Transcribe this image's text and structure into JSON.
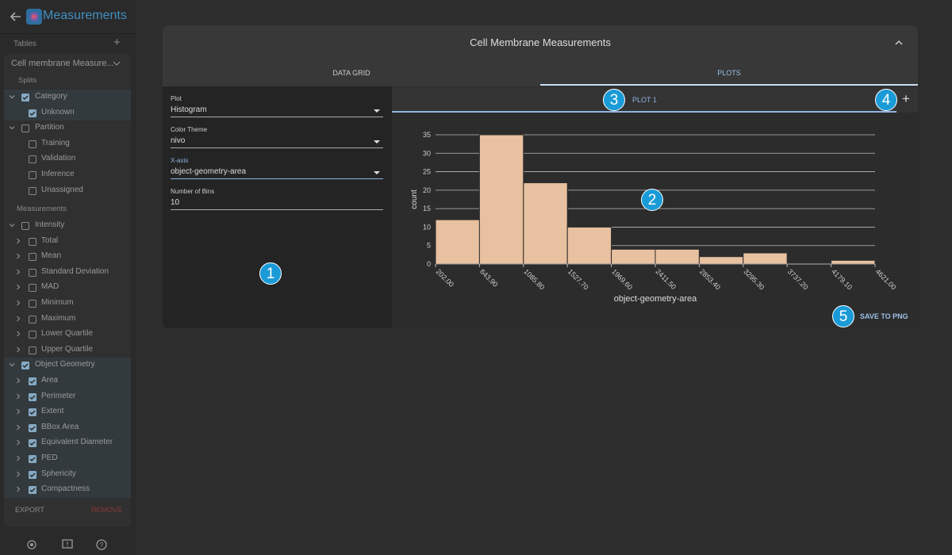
{
  "sidebar": {
    "app_title": "Measurements",
    "tables_label": "Tables",
    "table_name": "Cell membrane Measure...",
    "splits_label": "Splits",
    "splits": [
      {
        "label": "Category",
        "checked": true,
        "children": [
          {
            "label": "Unknown",
            "checked": true
          }
        ]
      },
      {
        "label": "Partition",
        "checked": false,
        "children": [
          {
            "label": "Training",
            "checked": false
          },
          {
            "label": "Validation",
            "checked": false
          },
          {
            "label": "Inference",
            "checked": false
          },
          {
            "label": "Unassigned",
            "checked": false
          }
        ]
      }
    ],
    "measurements_label": "Measurements",
    "measurements": [
      {
        "label": "Intensity",
        "checked": false,
        "children": [
          {
            "label": "Total",
            "checked": false
          },
          {
            "label": "Mean",
            "checked": false
          },
          {
            "label": "Standard Deviation",
            "checked": false
          },
          {
            "label": "MAD",
            "checked": false
          },
          {
            "label": "Minimum",
            "checked": false
          },
          {
            "label": "Maximum",
            "checked": false
          },
          {
            "label": "Lower Quartile",
            "checked": false
          },
          {
            "label": "Upper Quartile",
            "checked": false
          }
        ]
      },
      {
        "label": "Object Geometry",
        "checked": true,
        "children": [
          {
            "label": "Area",
            "checked": true
          },
          {
            "label": "Perimeter",
            "checked": true
          },
          {
            "label": "Extent",
            "checked": true
          },
          {
            "label": "BBox Area",
            "checked": true
          },
          {
            "label": "Equivalent Diameter",
            "checked": true
          },
          {
            "label": "PED",
            "checked": true
          },
          {
            "label": "Sphericity",
            "checked": true
          },
          {
            "label": "Compactness",
            "checked": true
          }
        ]
      }
    ],
    "export": "EXPORT",
    "remove": "REMOVE"
  },
  "panel": {
    "title": "Cell Membrane Measurements",
    "tabs": [
      "DATA GRID",
      "PLOTS"
    ],
    "active_tab": 1,
    "fields": [
      {
        "label": "Plot",
        "value": "Histogram"
      },
      {
        "label": "Color Theme",
        "value": "nivo"
      },
      {
        "label": "X-axis",
        "value": "object-geometry-area"
      },
      {
        "label": "Number of Bins",
        "value": "10"
      }
    ],
    "focused_field": 2,
    "plot_tab": "PLOT 1",
    "save": "SAVE TO PNG",
    "badges": [
      1,
      2,
      3,
      4,
      5
    ]
  },
  "chart_data": {
    "type": "histogram",
    "bins": [
      202,
      643.9,
      1085.8,
      1527.7,
      1969.6,
      2411.5,
      2853.4,
      3295.3,
      3737.2,
      4179.1,
      4621
    ],
    "values": [
      12,
      35,
      22,
      10,
      4,
      4,
      2,
      3,
      0,
      1
    ],
    "color": "#e8c1a0",
    "xlabel": "object-geometry-area",
    "ylabel": "count",
    "xlim": [
      202,
      4621
    ],
    "ylim": [
      0,
      35
    ],
    "xticks": [
      {
        "value": 202,
        "label": "202.00"
      },
      {
        "value": 643.9,
        "label": "643.90"
      },
      {
        "value": 1085.8,
        "label": "1085.80"
      },
      {
        "value": 1527.7,
        "label": "1527.70"
      },
      {
        "value": 1969.6,
        "label": "1969.60"
      },
      {
        "value": 2411.5,
        "label": "2411.50"
      },
      {
        "value": 2853.4,
        "label": "2853.40"
      },
      {
        "value": 3295.3,
        "label": "3295.30"
      },
      {
        "value": 3737.2,
        "label": "3737.20"
      },
      {
        "value": 4179.1,
        "label": "4179.10"
      },
      {
        "value": 4621,
        "label": "4621.00"
      }
    ],
    "yticks": [
      0,
      5,
      10,
      15,
      20,
      25,
      30,
      35
    ],
    "grid": true
  }
}
